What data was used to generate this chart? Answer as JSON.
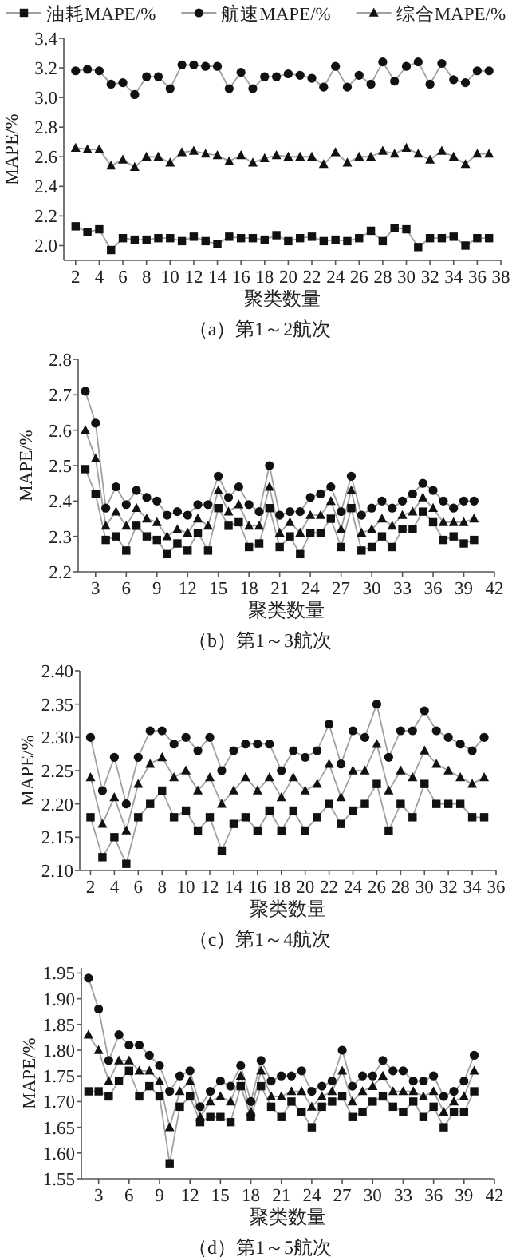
{
  "chart_data": [
    {
      "type": "line",
      "title": "（a）第1～2航次",
      "xlabel": "聚类数量",
      "ylabel": "MAPE/%",
      "legend": "top",
      "line_style": "solid",
      "grid": false,
      "x": [
        2,
        3,
        4,
        5,
        6,
        7,
        8,
        9,
        10,
        11,
        12,
        13,
        14,
        15,
        16,
        17,
        18,
        19,
        20,
        21,
        22,
        23,
        24,
        25,
        26,
        27,
        28,
        29,
        30,
        31,
        32,
        33,
        34,
        35,
        36,
        37
      ],
      "xlim": [
        1,
        38
      ],
      "xticks": [
        2,
        4,
        6,
        8,
        10,
        12,
        14,
        16,
        18,
        20,
        22,
        24,
        26,
        28,
        30,
        32,
        34,
        36,
        38
      ],
      "ylim": [
        1.9,
        3.4
      ],
      "yticks": [
        {
          "value": 2.0,
          "label": "2.0"
        },
        2.2,
        2.4,
        2.6,
        2.8,
        {
          "value": 3.0,
          "label": "3.0"
        },
        3.2,
        3.4
      ],
      "series": [
        {
          "name": "油耗MAPE/%",
          "color": "#111111",
          "marker": "square",
          "values": [
            2.13,
            2.09,
            2.11,
            1.97,
            2.05,
            2.04,
            2.04,
            2.05,
            2.05,
            2.03,
            2.06,
            2.03,
            2.01,
            2.06,
            2.05,
            2.05,
            2.04,
            2.07,
            2.03,
            2.05,
            2.06,
            2.03,
            2.04,
            2.03,
            2.05,
            2.1,
            2.03,
            2.12,
            2.11,
            1.99,
            2.05,
            2.05,
            2.06,
            2.0,
            2.05,
            2.05
          ]
        },
        {
          "name": "航速MAPE/%",
          "color": "#111111",
          "marker": "circle",
          "values": [
            3.18,
            3.19,
            3.18,
            3.09,
            3.1,
            3.02,
            3.14,
            3.14,
            3.06,
            3.22,
            3.22,
            3.21,
            3.21,
            3.06,
            3.17,
            3.06,
            3.14,
            3.14,
            3.16,
            3.15,
            3.13,
            3.07,
            3.21,
            3.07,
            3.15,
            3.09,
            3.24,
            3.11,
            3.21,
            3.24,
            3.09,
            3.23,
            3.12,
            3.1,
            3.18,
            3.18
          ]
        },
        {
          "name": "综合MAPE/%",
          "color": "#111111",
          "marker": "triangle",
          "values": [
            2.66,
            2.65,
            2.65,
            2.54,
            2.58,
            2.53,
            2.6,
            2.6,
            2.56,
            2.63,
            2.64,
            2.62,
            2.61,
            2.57,
            2.61,
            2.56,
            2.59,
            2.61,
            2.6,
            2.6,
            2.6,
            2.55,
            2.63,
            2.56,
            2.6,
            2.6,
            2.64,
            2.62,
            2.66,
            2.62,
            2.58,
            2.64,
            2.6,
            2.55,
            2.62,
            2.62
          ]
        }
      ]
    },
    {
      "type": "line",
      "title": "（b）第1～3航次",
      "xlabel": "聚类数量",
      "ylabel": "MAPE/%",
      "line_style": "solid",
      "grid": false,
      "x": [
        2,
        3,
        4,
        5,
        6,
        7,
        8,
        9,
        10,
        11,
        12,
        13,
        14,
        15,
        16,
        17,
        18,
        19,
        20,
        21,
        22,
        23,
        24,
        25,
        26,
        27,
        28,
        29,
        30,
        31,
        32,
        33,
        34,
        35,
        36,
        37,
        38,
        39,
        40
      ],
      "xlim": [
        1.3,
        42
      ],
      "xticks": [
        3,
        6,
        9,
        12,
        15,
        18,
        21,
        24,
        27,
        30,
        33,
        36,
        39,
        42
      ],
      "ylim": [
        2.2,
        2.8
      ],
      "yticks": [
        2.2,
        2.3,
        2.4,
        2.5,
        2.6,
        2.7,
        2.8
      ],
      "series": [
        {
          "color": "#111111",
          "marker": "square",
          "values": [
            2.49,
            2.42,
            2.29,
            2.3,
            2.26,
            2.33,
            2.3,
            2.29,
            2.25,
            2.28,
            2.26,
            2.31,
            2.26,
            2.38,
            2.33,
            2.34,
            2.27,
            2.28,
            2.38,
            2.27,
            2.3,
            2.25,
            2.31,
            2.31,
            2.35,
            2.27,
            2.38,
            2.26,
            2.27,
            2.3,
            2.27,
            2.32,
            2.32,
            2.37,
            2.34,
            2.29,
            2.3,
            2.28,
            2.29
          ]
        },
        {
          "color": "#111111",
          "marker": "circle",
          "values": [
            2.71,
            2.62,
            2.38,
            2.44,
            2.39,
            2.43,
            2.41,
            2.4,
            2.36,
            2.37,
            2.36,
            2.39,
            2.39,
            2.47,
            2.41,
            2.44,
            2.39,
            2.37,
            2.5,
            2.36,
            2.37,
            2.37,
            2.41,
            2.42,
            2.44,
            2.37,
            2.47,
            2.36,
            2.38,
            2.4,
            2.38,
            2.4,
            2.42,
            2.45,
            2.43,
            2.4,
            2.38,
            2.4,
            2.4
          ]
        },
        {
          "color": "#111111",
          "marker": "triangle",
          "values": [
            2.6,
            2.52,
            2.33,
            2.37,
            2.33,
            2.38,
            2.35,
            2.34,
            2.3,
            2.32,
            2.31,
            2.35,
            2.33,
            2.43,
            2.37,
            2.39,
            2.33,
            2.33,
            2.44,
            2.31,
            2.34,
            2.31,
            2.36,
            2.36,
            2.4,
            2.32,
            2.43,
            2.31,
            2.32,
            2.35,
            2.33,
            2.36,
            2.37,
            2.41,
            2.38,
            2.34,
            2.34,
            2.34,
            2.35
          ]
        }
      ]
    },
    {
      "type": "line",
      "title": "（c）第1～4航次",
      "xlabel": "聚类数量",
      "ylabel": "MAPE/%",
      "line_style": "solid",
      "grid": false,
      "x": [
        2,
        3,
        4,
        5,
        6,
        7,
        8,
        9,
        10,
        11,
        12,
        13,
        14,
        15,
        16,
        17,
        18,
        19,
        20,
        21,
        22,
        23,
        24,
        25,
        26,
        27,
        28,
        29,
        30,
        31,
        32,
        33,
        34,
        35
      ],
      "xlim": [
        1.1,
        36
      ],
      "xticks": [
        2,
        4,
        6,
        8,
        10,
        12,
        14,
        16,
        18,
        20,
        22,
        24,
        26,
        28,
        30,
        32,
        34,
        36
      ],
      "ylim": [
        2.1,
        2.4
      ],
      "yticks": [
        {
          "value": 2.1,
          "label": "2.10"
        },
        2.15,
        {
          "value": 2.2,
          "label": "2.20"
        },
        2.25,
        {
          "value": 2.3,
          "label": "2.30"
        },
        2.35,
        {
          "value": 2.4,
          "label": "2.40"
        }
      ],
      "series": [
        {
          "color": "#111111",
          "marker": "square",
          "values": [
            2.18,
            2.12,
            2.15,
            2.11,
            2.18,
            2.2,
            2.22,
            2.18,
            2.19,
            2.16,
            2.18,
            2.13,
            2.17,
            2.18,
            2.16,
            2.19,
            2.16,
            2.19,
            2.16,
            2.18,
            2.2,
            2.17,
            2.19,
            2.2,
            2.23,
            2.16,
            2.2,
            2.18,
            2.23,
            2.2,
            2.2,
            2.2,
            2.18,
            2.18
          ]
        },
        {
          "color": "#111111",
          "marker": "circle",
          "values": [
            2.3,
            2.22,
            2.27,
            2.2,
            2.27,
            2.31,
            2.31,
            2.29,
            2.3,
            2.28,
            2.3,
            2.25,
            2.28,
            2.29,
            2.29,
            2.29,
            2.25,
            2.28,
            2.27,
            2.28,
            2.32,
            2.26,
            2.31,
            2.3,
            2.35,
            2.27,
            2.31,
            2.31,
            2.34,
            2.31,
            2.3,
            2.29,
            2.28,
            2.3
          ]
        },
        {
          "color": "#111111",
          "marker": "triangle",
          "values": [
            2.24,
            2.17,
            2.21,
            2.16,
            2.23,
            2.26,
            2.27,
            2.24,
            2.25,
            2.22,
            2.24,
            2.2,
            2.22,
            2.24,
            2.22,
            2.24,
            2.21,
            2.24,
            2.22,
            2.23,
            2.26,
            2.21,
            2.25,
            2.25,
            2.29,
            2.22,
            2.25,
            2.24,
            2.28,
            2.26,
            2.25,
            2.24,
            2.23,
            2.24
          ]
        }
      ]
    },
    {
      "type": "line",
      "title": "（d）第1～5航次",
      "xlabel": "聚类数量",
      "ylabel": "MAPE/%",
      "line_style": "solid",
      "grid": false,
      "x": [
        2,
        3,
        4,
        5,
        6,
        7,
        8,
        9,
        10,
        11,
        12,
        13,
        14,
        15,
        16,
        17,
        18,
        19,
        20,
        21,
        22,
        23,
        24,
        25,
        26,
        27,
        28,
        29,
        30,
        31,
        32,
        33,
        34,
        35,
        36,
        37,
        38,
        39,
        40
      ],
      "xlim": [
        1.3,
        42
      ],
      "xticks": [
        3,
        6,
        9,
        12,
        15,
        18,
        21,
        24,
        27,
        30,
        33,
        36,
        39,
        42
      ],
      "ylim": [
        1.55,
        1.96
      ],
      "yticks": [
        1.55,
        {
          "value": 1.6,
          "label": "1.60"
        },
        1.65,
        {
          "value": 1.7,
          "label": "1.70"
        },
        1.75,
        {
          "value": 1.8,
          "label": "1.80"
        },
        1.85,
        {
          "value": 1.9,
          "label": "1.90"
        },
        1.95
      ],
      "series": [
        {
          "color": "#111111",
          "marker": "square",
          "values": [
            1.72,
            1.72,
            1.71,
            1.74,
            1.76,
            1.71,
            1.73,
            1.71,
            1.58,
            1.69,
            1.71,
            1.66,
            1.67,
            1.67,
            1.66,
            1.73,
            1.67,
            1.73,
            1.69,
            1.67,
            1.7,
            1.68,
            1.65,
            1.69,
            1.7,
            1.71,
            1.67,
            1.68,
            1.7,
            1.71,
            1.69,
            1.68,
            1.7,
            1.67,
            1.69,
            1.65,
            1.68,
            1.68,
            1.72
          ]
        },
        {
          "color": "#111111",
          "marker": "circle",
          "values": [
            1.94,
            1.88,
            1.78,
            1.83,
            1.81,
            1.81,
            1.79,
            1.77,
            1.72,
            1.75,
            1.76,
            1.69,
            1.72,
            1.74,
            1.73,
            1.77,
            1.7,
            1.78,
            1.74,
            1.75,
            1.75,
            1.76,
            1.72,
            1.73,
            1.74,
            1.8,
            1.73,
            1.75,
            1.75,
            1.78,
            1.76,
            1.76,
            1.74,
            1.74,
            1.75,
            1.71,
            1.72,
            1.74,
            1.79
          ]
        },
        {
          "color": "#111111",
          "marker": "triangle",
          "values": [
            1.83,
            1.8,
            1.74,
            1.78,
            1.78,
            1.76,
            1.76,
            1.74,
            1.65,
            1.72,
            1.74,
            1.67,
            1.7,
            1.71,
            1.7,
            1.75,
            1.68,
            1.76,
            1.71,
            1.71,
            1.72,
            1.72,
            1.69,
            1.71,
            1.72,
            1.76,
            1.7,
            1.72,
            1.73,
            1.75,
            1.72,
            1.72,
            1.72,
            1.71,
            1.72,
            1.68,
            1.7,
            1.71,
            1.76
          ]
        }
      ]
    }
  ]
}
